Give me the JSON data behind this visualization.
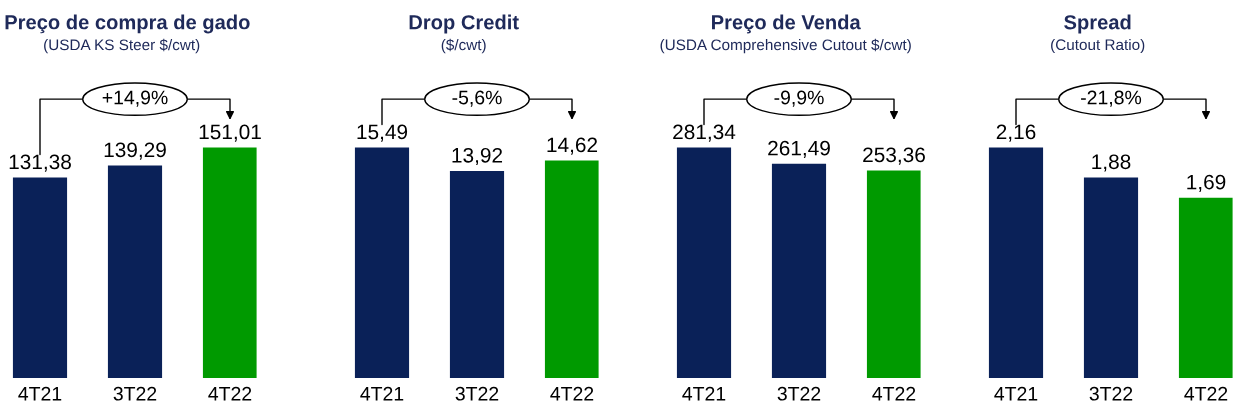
{
  "chart_data": [
    {
      "type": "bar",
      "title": "Preço de compra de gado",
      "subtitle": "(USDA KS Steer $/cwt)",
      "categories": [
        "4T21",
        "3T22",
        "4T22"
      ],
      "values": [
        131.38,
        139.29,
        151.01
      ],
      "value_labels": [
        "131,38",
        "139,29",
        "151,01"
      ],
      "colors": [
        "#0a2158",
        "#0a2158",
        "#009a00"
      ],
      "annotations": [
        "+14,9%"
      ]
    },
    {
      "type": "bar",
      "title": "Drop Credit",
      "subtitle": "($/cwt)",
      "categories": [
        "4T21",
        "3T22",
        "4T22"
      ],
      "values": [
        15.49,
        13.92,
        14.62
      ],
      "value_labels": [
        "15,49",
        "13,92",
        "14,62"
      ],
      "colors": [
        "#0a2158",
        "#0a2158",
        "#009a00"
      ],
      "annotations": [
        "-5,6%"
      ]
    },
    {
      "type": "bar",
      "title": "Preço de Venda",
      "subtitle": "(USDA Comprehensive Cutout $/cwt)",
      "categories": [
        "4T21",
        "3T22",
        "4T22"
      ],
      "values": [
        281.34,
        261.49,
        253.36
      ],
      "value_labels": [
        "281,34",
        "261,49",
        "253,36"
      ],
      "colors": [
        "#0a2158",
        "#0a2158",
        "#009a00"
      ],
      "annotations": [
        "-9,9%"
      ]
    },
    {
      "type": "bar",
      "title": "Spread",
      "subtitle": "(Cutout Ratio)",
      "categories": [
        "4T21",
        "3T22",
        "4T22"
      ],
      "values": [
        2.16,
        1.88,
        1.69
      ],
      "value_labels": [
        "2,16",
        "1,88",
        "1,69"
      ],
      "colors": [
        "#0a2158",
        "#0a2158",
        "#009a00"
      ],
      "annotations": [
        "-21,8%"
      ]
    }
  ]
}
